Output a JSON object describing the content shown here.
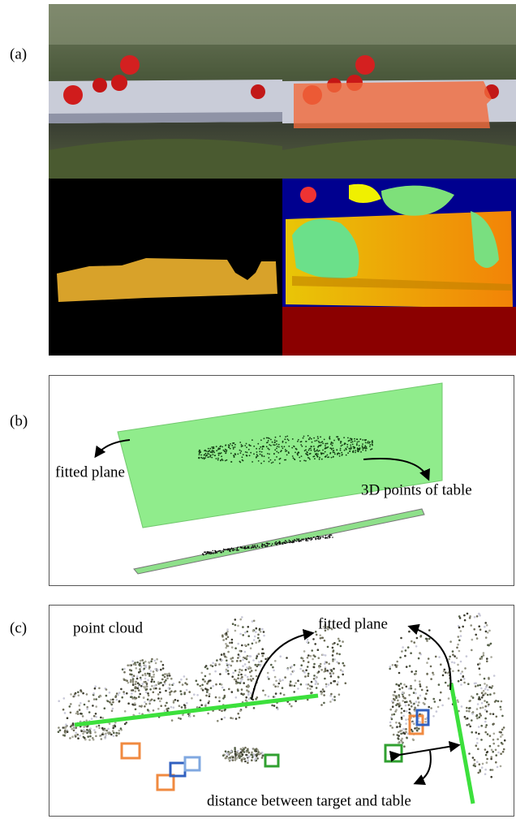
{
  "panels": [
    {
      "label": "(a)"
    },
    {
      "label": "(b)",
      "annotations": [
        "fitted plane",
        "3D points of table"
      ]
    },
    {
      "label": "(c)",
      "annotations": [
        "point cloud",
        "fitted plane",
        "distance between target and table"
      ]
    }
  ]
}
